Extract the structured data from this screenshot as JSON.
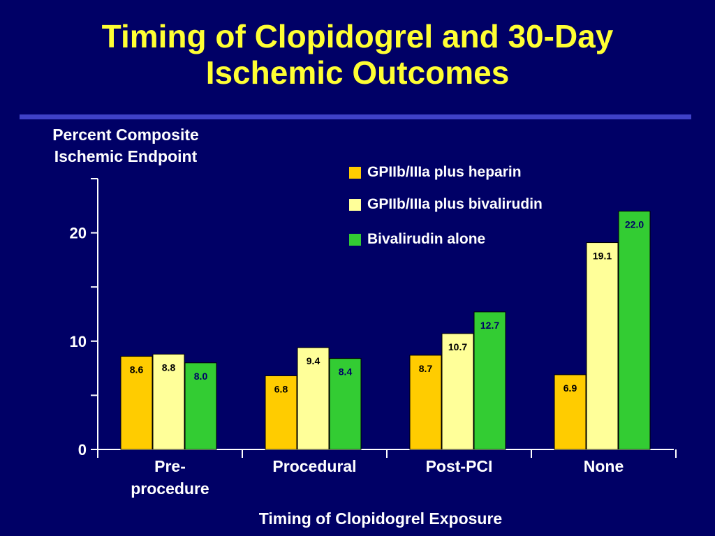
{
  "slide": {
    "title_line1": "Timing of Clopidogrel and 30-Day",
    "title_line2": "Ischemic Outcomes",
    "colors": {
      "background": "#000066",
      "title": "#ffff33",
      "rule": "#3f41c8"
    }
  },
  "chart_data": {
    "type": "bar",
    "title": "",
    "ylabel_line1": "Percent Composite",
    "ylabel_line2": "Ischemic Endpoint",
    "xlabel": "Timing of Clopidogrel Exposure",
    "categories": [
      [
        "Pre-",
        "procedure"
      ],
      [
        "Procedural"
      ],
      [
        "Post-PCI"
      ],
      [
        "None"
      ]
    ],
    "series": [
      {
        "name": "GPIIb/IIIa plus heparin",
        "color": "#ffcc00",
        "label_color": "#000000",
        "values": [
          8.6,
          6.8,
          8.7,
          6.9
        ]
      },
      {
        "name": "GPIIb/IIIa plus bivalirudin",
        "color": "#ffff99",
        "label_color": "#000000",
        "values": [
          8.8,
          9.4,
          10.7,
          19.1
        ]
      },
      {
        "name": "Bivalirudin alone",
        "color": "#33cc33",
        "label_color": "#000066",
        "values": [
          8.0,
          8.4,
          12.7,
          22.0
        ]
      }
    ],
    "ylim": [
      0,
      25
    ],
    "yticks": [
      0,
      10,
      20
    ],
    "minor_ticks": [
      5,
      15,
      25
    ],
    "grid": false,
    "legend_position": "top-right"
  }
}
